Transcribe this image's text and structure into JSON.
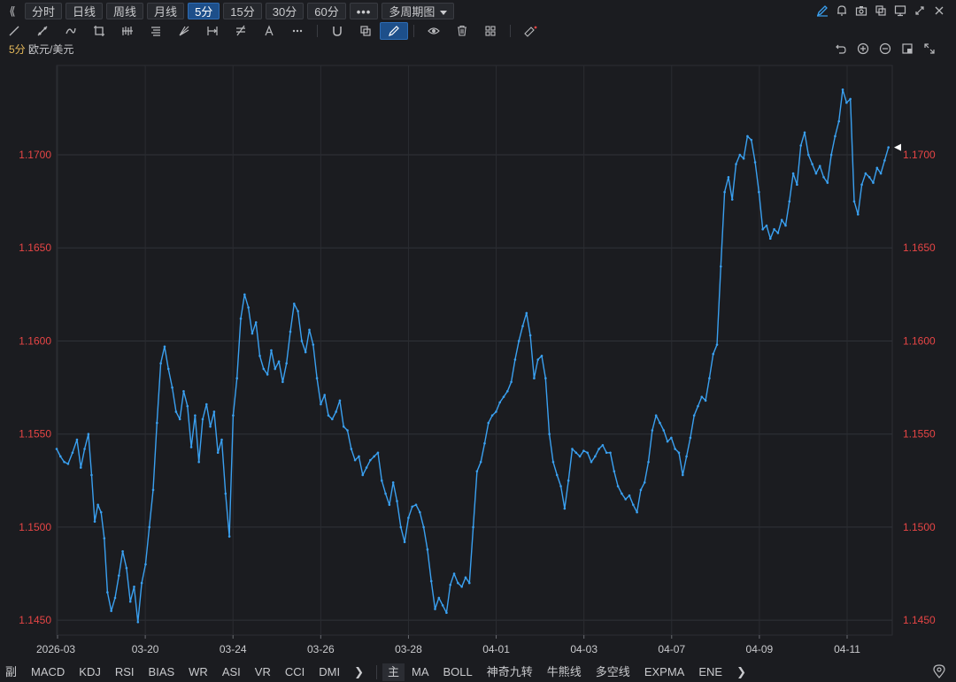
{
  "toolbar": {
    "periods": [
      "分时",
      "日线",
      "周线",
      "月线",
      "5分",
      "15分",
      "30分",
      "60分"
    ],
    "active_period": "5分",
    "more_label": "•••",
    "multi_period_label": "多周期图",
    "right_icons": [
      "pencil-icon",
      "bell-icon",
      "camera-icon",
      "copy-icon",
      "monitor-icon",
      "fullscreen-icon",
      "close-icon"
    ]
  },
  "drawing_tools": [
    "line-tool",
    "ray-tool",
    "channel-tool",
    "crop-tool",
    "bars-tool",
    "fib-tool",
    "fan-tool",
    "range-tool",
    "gann-tool",
    "text-tool",
    "more-tools",
    "magnet-tool",
    "layer-tool",
    "pencil-tool",
    "eye-tool",
    "trash-tool",
    "grid-tool",
    "ruler-tool"
  ],
  "symbol": {
    "period": "5分",
    "name": "欧元/美元"
  },
  "chart_data": {
    "type": "line",
    "x_tick_labels": [
      "2026-03",
      "03-20",
      "03-24",
      "03-26",
      "03-28",
      "04-01",
      "04-03",
      "04-07",
      "04-09",
      "04-11"
    ],
    "y_tick_labels": [
      "1.1700",
      "1.1650",
      "1.1600",
      "1.1550",
      "1.1500",
      "1.1450"
    ],
    "ylim": [
      1.1442,
      1.1748
    ],
    "grid": true,
    "line_color": "#3aa0f0",
    "axis_label_color": "#e64545",
    "points": [
      [
        0.0,
        1.1542
      ],
      [
        0.6,
        1.1538
      ],
      [
        1.2,
        1.1535
      ],
      [
        1.8,
        1.1534
      ],
      [
        2.5,
        1.154
      ],
      [
        3.2,
        1.1547
      ],
      [
        3.8,
        1.1532
      ],
      [
        4.4,
        1.1542
      ],
      [
        5.0,
        1.155
      ],
      [
        5.5,
        1.1528
      ],
      [
        6.0,
        1.1503
      ],
      [
        6.5,
        1.1512
      ],
      [
        7.0,
        1.1508
      ],
      [
        7.5,
        1.1494
      ],
      [
        8.0,
        1.1465
      ],
      [
        8.6,
        1.1455
      ],
      [
        9.2,
        1.1462
      ],
      [
        9.8,
        1.1474
      ],
      [
        10.4,
        1.1487
      ],
      [
        11.0,
        1.1478
      ],
      [
        11.6,
        1.146
      ],
      [
        12.2,
        1.1468
      ],
      [
        12.8,
        1.1449
      ],
      [
        13.4,
        1.147
      ],
      [
        14.0,
        1.148
      ],
      [
        14.6,
        1.15
      ],
      [
        15.2,
        1.152
      ],
      [
        15.8,
        1.1556
      ],
      [
        16.4,
        1.1588
      ],
      [
        17.0,
        1.1597
      ],
      [
        17.6,
        1.1585
      ],
      [
        18.2,
        1.1575
      ],
      [
        18.8,
        1.1562
      ],
      [
        19.4,
        1.1558
      ],
      [
        20.0,
        1.1573
      ],
      [
        20.6,
        1.1565
      ],
      [
        21.2,
        1.1543
      ],
      [
        21.8,
        1.156
      ],
      [
        22.4,
        1.1535
      ],
      [
        23.0,
        1.1558
      ],
      [
        23.6,
        1.1566
      ],
      [
        24.2,
        1.1554
      ],
      [
        24.8,
        1.1562
      ],
      [
        25.4,
        1.154
      ],
      [
        26.0,
        1.1547
      ],
      [
        26.6,
        1.1518
      ],
      [
        27.2,
        1.1495
      ],
      [
        27.8,
        1.156
      ],
      [
        28.4,
        1.158
      ],
      [
        29.0,
        1.1612
      ],
      [
        29.6,
        1.1625
      ],
      [
        30.2,
        1.1618
      ],
      [
        30.8,
        1.1604
      ],
      [
        31.4,
        1.161
      ],
      [
        32.0,
        1.1592
      ],
      [
        32.6,
        1.1585
      ],
      [
        33.2,
        1.1582
      ],
      [
        33.8,
        1.1595
      ],
      [
        34.4,
        1.1585
      ],
      [
        35.0,
        1.1589
      ],
      [
        35.6,
        1.1578
      ],
      [
        36.2,
        1.1588
      ],
      [
        36.8,
        1.1605
      ],
      [
        37.4,
        1.162
      ],
      [
        38.0,
        1.1616
      ],
      [
        38.6,
        1.16
      ],
      [
        39.2,
        1.1594
      ],
      [
        39.8,
        1.1606
      ],
      [
        40.4,
        1.1598
      ],
      [
        41.0,
        1.158
      ],
      [
        41.6,
        1.1566
      ],
      [
        42.2,
        1.1571
      ],
      [
        42.8,
        1.156
      ],
      [
        43.4,
        1.1558
      ],
      [
        44.0,
        1.1562
      ],
      [
        44.6,
        1.1568
      ],
      [
        45.2,
        1.1554
      ],
      [
        45.8,
        1.1552
      ],
      [
        46.4,
        1.1542
      ],
      [
        47.0,
        1.1536
      ],
      [
        47.6,
        1.1538
      ],
      [
        48.2,
        1.1528
      ],
      [
        48.8,
        1.1532
      ],
      [
        49.4,
        1.1536
      ],
      [
        50.0,
        1.1538
      ],
      [
        50.6,
        1.154
      ],
      [
        51.2,
        1.1525
      ],
      [
        51.8,
        1.1518
      ],
      [
        52.4,
        1.1512
      ],
      [
        53.0,
        1.1524
      ],
      [
        53.6,
        1.1514
      ],
      [
        54.2,
        1.15
      ],
      [
        54.8,
        1.1492
      ],
      [
        55.4,
        1.1505
      ],
      [
        56.0,
        1.1511
      ],
      [
        56.6,
        1.1512
      ],
      [
        57.2,
        1.1508
      ],
      [
        57.8,
        1.15
      ],
      [
        58.4,
        1.1488
      ],
      [
        59.0,
        1.1471
      ],
      [
        59.6,
        1.1456
      ],
      [
        60.2,
        1.1462
      ],
      [
        60.8,
        1.1458
      ],
      [
        61.4,
        1.1454
      ],
      [
        62.0,
        1.1469
      ],
      [
        62.6,
        1.1475
      ],
      [
        63.2,
        1.147
      ],
      [
        63.8,
        1.1468
      ],
      [
        64.4,
        1.1473
      ],
      [
        65.0,
        1.147
      ],
      [
        65.6,
        1.15
      ],
      [
        66.2,
        1.153
      ],
      [
        66.8,
        1.1535
      ],
      [
        67.4,
        1.1545
      ],
      [
        68.0,
        1.1556
      ],
      [
        68.6,
        1.156
      ],
      [
        69.2,
        1.1562
      ],
      [
        69.8,
        1.1567
      ],
      [
        70.4,
        1.157
      ],
      [
        71.0,
        1.1573
      ],
      [
        71.6,
        1.1578
      ],
      [
        72.2,
        1.159
      ],
      [
        72.8,
        1.16
      ],
      [
        73.4,
        1.1608
      ],
      [
        74.0,
        1.1615
      ],
      [
        74.6,
        1.1603
      ],
      [
        75.2,
        1.158
      ],
      [
        75.8,
        1.159
      ],
      [
        76.4,
        1.1592
      ],
      [
        77.0,
        1.158
      ],
      [
        77.6,
        1.155
      ],
      [
        78.2,
        1.1535
      ],
      [
        78.8,
        1.1528
      ],
      [
        79.4,
        1.1522
      ],
      [
        80.0,
        1.151
      ],
      [
        80.6,
        1.1525
      ],
      [
        81.2,
        1.1542
      ],
      [
        81.8,
        1.154
      ],
      [
        82.4,
        1.1538
      ],
      [
        83.0,
        1.1541
      ],
      [
        83.6,
        1.154
      ],
      [
        84.2,
        1.1535
      ],
      [
        84.8,
        1.1538
      ],
      [
        85.4,
        1.1542
      ],
      [
        86.0,
        1.1544
      ],
      [
        86.6,
        1.154
      ],
      [
        87.2,
        1.154
      ],
      [
        87.8,
        1.153
      ],
      [
        88.4,
        1.1522
      ],
      [
        89.0,
        1.1518
      ],
      [
        89.6,
        1.1515
      ],
      [
        90.2,
        1.1517
      ],
      [
        90.8,
        1.1512
      ],
      [
        91.4,
        1.1508
      ],
      [
        92.0,
        1.152
      ],
      [
        92.6,
        1.1524
      ],
      [
        93.2,
        1.1535
      ],
      [
        93.8,
        1.1552
      ],
      [
        94.4,
        1.156
      ],
      [
        95.0,
        1.1556
      ],
      [
        95.6,
        1.1552
      ],
      [
        96.2,
        1.1546
      ],
      [
        96.8,
        1.1548
      ],
      [
        97.4,
        1.1542
      ],
      [
        98.0,
        1.154
      ],
      [
        98.6,
        1.1528
      ],
      [
        99.2,
        1.1538
      ],
      [
        99.8,
        1.1548
      ],
      [
        100.4,
        1.156
      ],
      [
        101.0,
        1.1565
      ],
      [
        101.6,
        1.157
      ],
      [
        102.2,
        1.1568
      ],
      [
        102.8,
        1.158
      ],
      [
        103.4,
        1.1593
      ],
      [
        104.0,
        1.1598
      ],
      [
        104.6,
        1.164
      ],
      [
        105.2,
        1.168
      ],
      [
        105.8,
        1.1688
      ],
      [
        106.4,
        1.1676
      ],
      [
        107.0,
        1.1695
      ],
      [
        107.6,
        1.17
      ],
      [
        108.2,
        1.1698
      ],
      [
        108.8,
        1.171
      ],
      [
        109.4,
        1.1708
      ],
      [
        110.0,
        1.1696
      ],
      [
        110.6,
        1.168
      ],
      [
        111.2,
        1.166
      ],
      [
        111.8,
        1.1662
      ],
      [
        112.4,
        1.1655
      ],
      [
        113.0,
        1.166
      ],
      [
        113.6,
        1.1658
      ],
      [
        114.2,
        1.1665
      ],
      [
        114.8,
        1.1662
      ],
      [
        115.4,
        1.1675
      ],
      [
        116.0,
        1.169
      ],
      [
        116.6,
        1.1684
      ],
      [
        117.2,
        1.1705
      ],
      [
        117.8,
        1.1712
      ],
      [
        118.4,
        1.17
      ],
      [
        119.0,
        1.1695
      ],
      [
        119.6,
        1.169
      ],
      [
        120.2,
        1.1694
      ],
      [
        120.8,
        1.1688
      ],
      [
        121.4,
        1.1685
      ],
      [
        122.0,
        1.17
      ],
      [
        122.6,
        1.171
      ],
      [
        123.2,
        1.1718
      ],
      [
        123.8,
        1.1735
      ],
      [
        124.4,
        1.1728
      ],
      [
        125.0,
        1.173
      ],
      [
        125.6,
        1.1675
      ],
      [
        126.2,
        1.1668
      ],
      [
        126.8,
        1.1684
      ],
      [
        127.4,
        1.169
      ],
      [
        128.0,
        1.1688
      ],
      [
        128.6,
        1.1685
      ],
      [
        129.2,
        1.1693
      ],
      [
        129.8,
        1.169
      ],
      [
        130.4,
        1.1697
      ],
      [
        131.0,
        1.1704
      ]
    ],
    "x_range": [
      0,
      131.6
    ]
  },
  "bottom_bar": {
    "left_indicators": [
      "副",
      "MACD",
      "KDJ",
      "RSI",
      "BIAS",
      "WR",
      "ASI",
      "VR",
      "CCI",
      "DMI"
    ],
    "main_tag": "主",
    "right_indicators": [
      "MA",
      "BOLL",
      "神奇九转",
      "牛熊线",
      "多空线",
      "EXPMA",
      "ENE"
    ],
    "arrow": "❯"
  }
}
